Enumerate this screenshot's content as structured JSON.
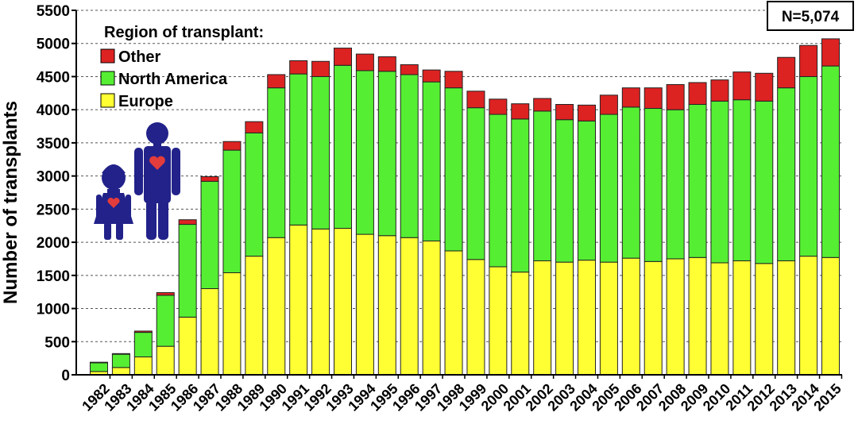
{
  "chart_data": {
    "type": "bar",
    "stacked": true,
    "title": "",
    "xlabel": "",
    "ylabel": "Number of transplants",
    "ylim": [
      0,
      5500
    ],
    "yticks": [
      0,
      500,
      1000,
      1500,
      2000,
      2500,
      3000,
      3500,
      4000,
      4500,
      5000,
      5500
    ],
    "grid": "dashed horizontal",
    "categories": [
      "1982",
      "1983",
      "1984",
      "1985",
      "1986",
      "1987",
      "1988",
      "1989",
      "1990",
      "1991",
      "1992",
      "1993",
      "1994",
      "1995",
      "1996",
      "1997",
      "1998",
      "1999",
      "2000",
      "2001",
      "2002",
      "2003",
      "2004",
      "2005",
      "2006",
      "2007",
      "2008",
      "2009",
      "2010",
      "2011",
      "2012",
      "2013",
      "2014",
      "2015"
    ],
    "series": [
      {
        "name": "Europe",
        "color": "#ffff33",
        "values": [
          50,
          110,
          270,
          430,
          870,
          1300,
          1540,
          1790,
          2070,
          2260,
          2200,
          2210,
          2120,
          2100,
          2070,
          2020,
          1870,
          1740,
          1630,
          1550,
          1720,
          1700,
          1730,
          1700,
          1760,
          1710,
          1750,
          1770,
          1690,
          1720,
          1680,
          1720,
          1790,
          1770
        ]
      },
      {
        "name": "North America",
        "color": "#55ee33",
        "values": [
          130,
          200,
          370,
          770,
          1400,
          1620,
          1850,
          1860,
          2260,
          2280,
          2300,
          2460,
          2470,
          2480,
          2460,
          2400,
          2460,
          2290,
          2300,
          2310,
          2260,
          2150,
          2100,
          2230,
          2280,
          2310,
          2250,
          2310,
          2440,
          2430,
          2450,
          2610,
          2710,
          2890
        ]
      },
      {
        "name": "Other",
        "color": "#dd2222",
        "values": [
          10,
          10,
          20,
          40,
          70,
          70,
          130,
          170,
          200,
          200,
          230,
          260,
          250,
          220,
          150,
          180,
          250,
          250,
          230,
          230,
          190,
          230,
          240,
          290,
          290,
          310,
          380,
          330,
          320,
          420,
          420,
          460,
          470,
          410
        ]
      }
    ],
    "legend": {
      "title": "Region of transplant:",
      "items": [
        "Other",
        "North America",
        "Europe"
      ],
      "placement": "top-left"
    },
    "annotation": "N=5,074"
  },
  "colors": {
    "figure": "#22228a",
    "heart": "#e23c3c"
  }
}
